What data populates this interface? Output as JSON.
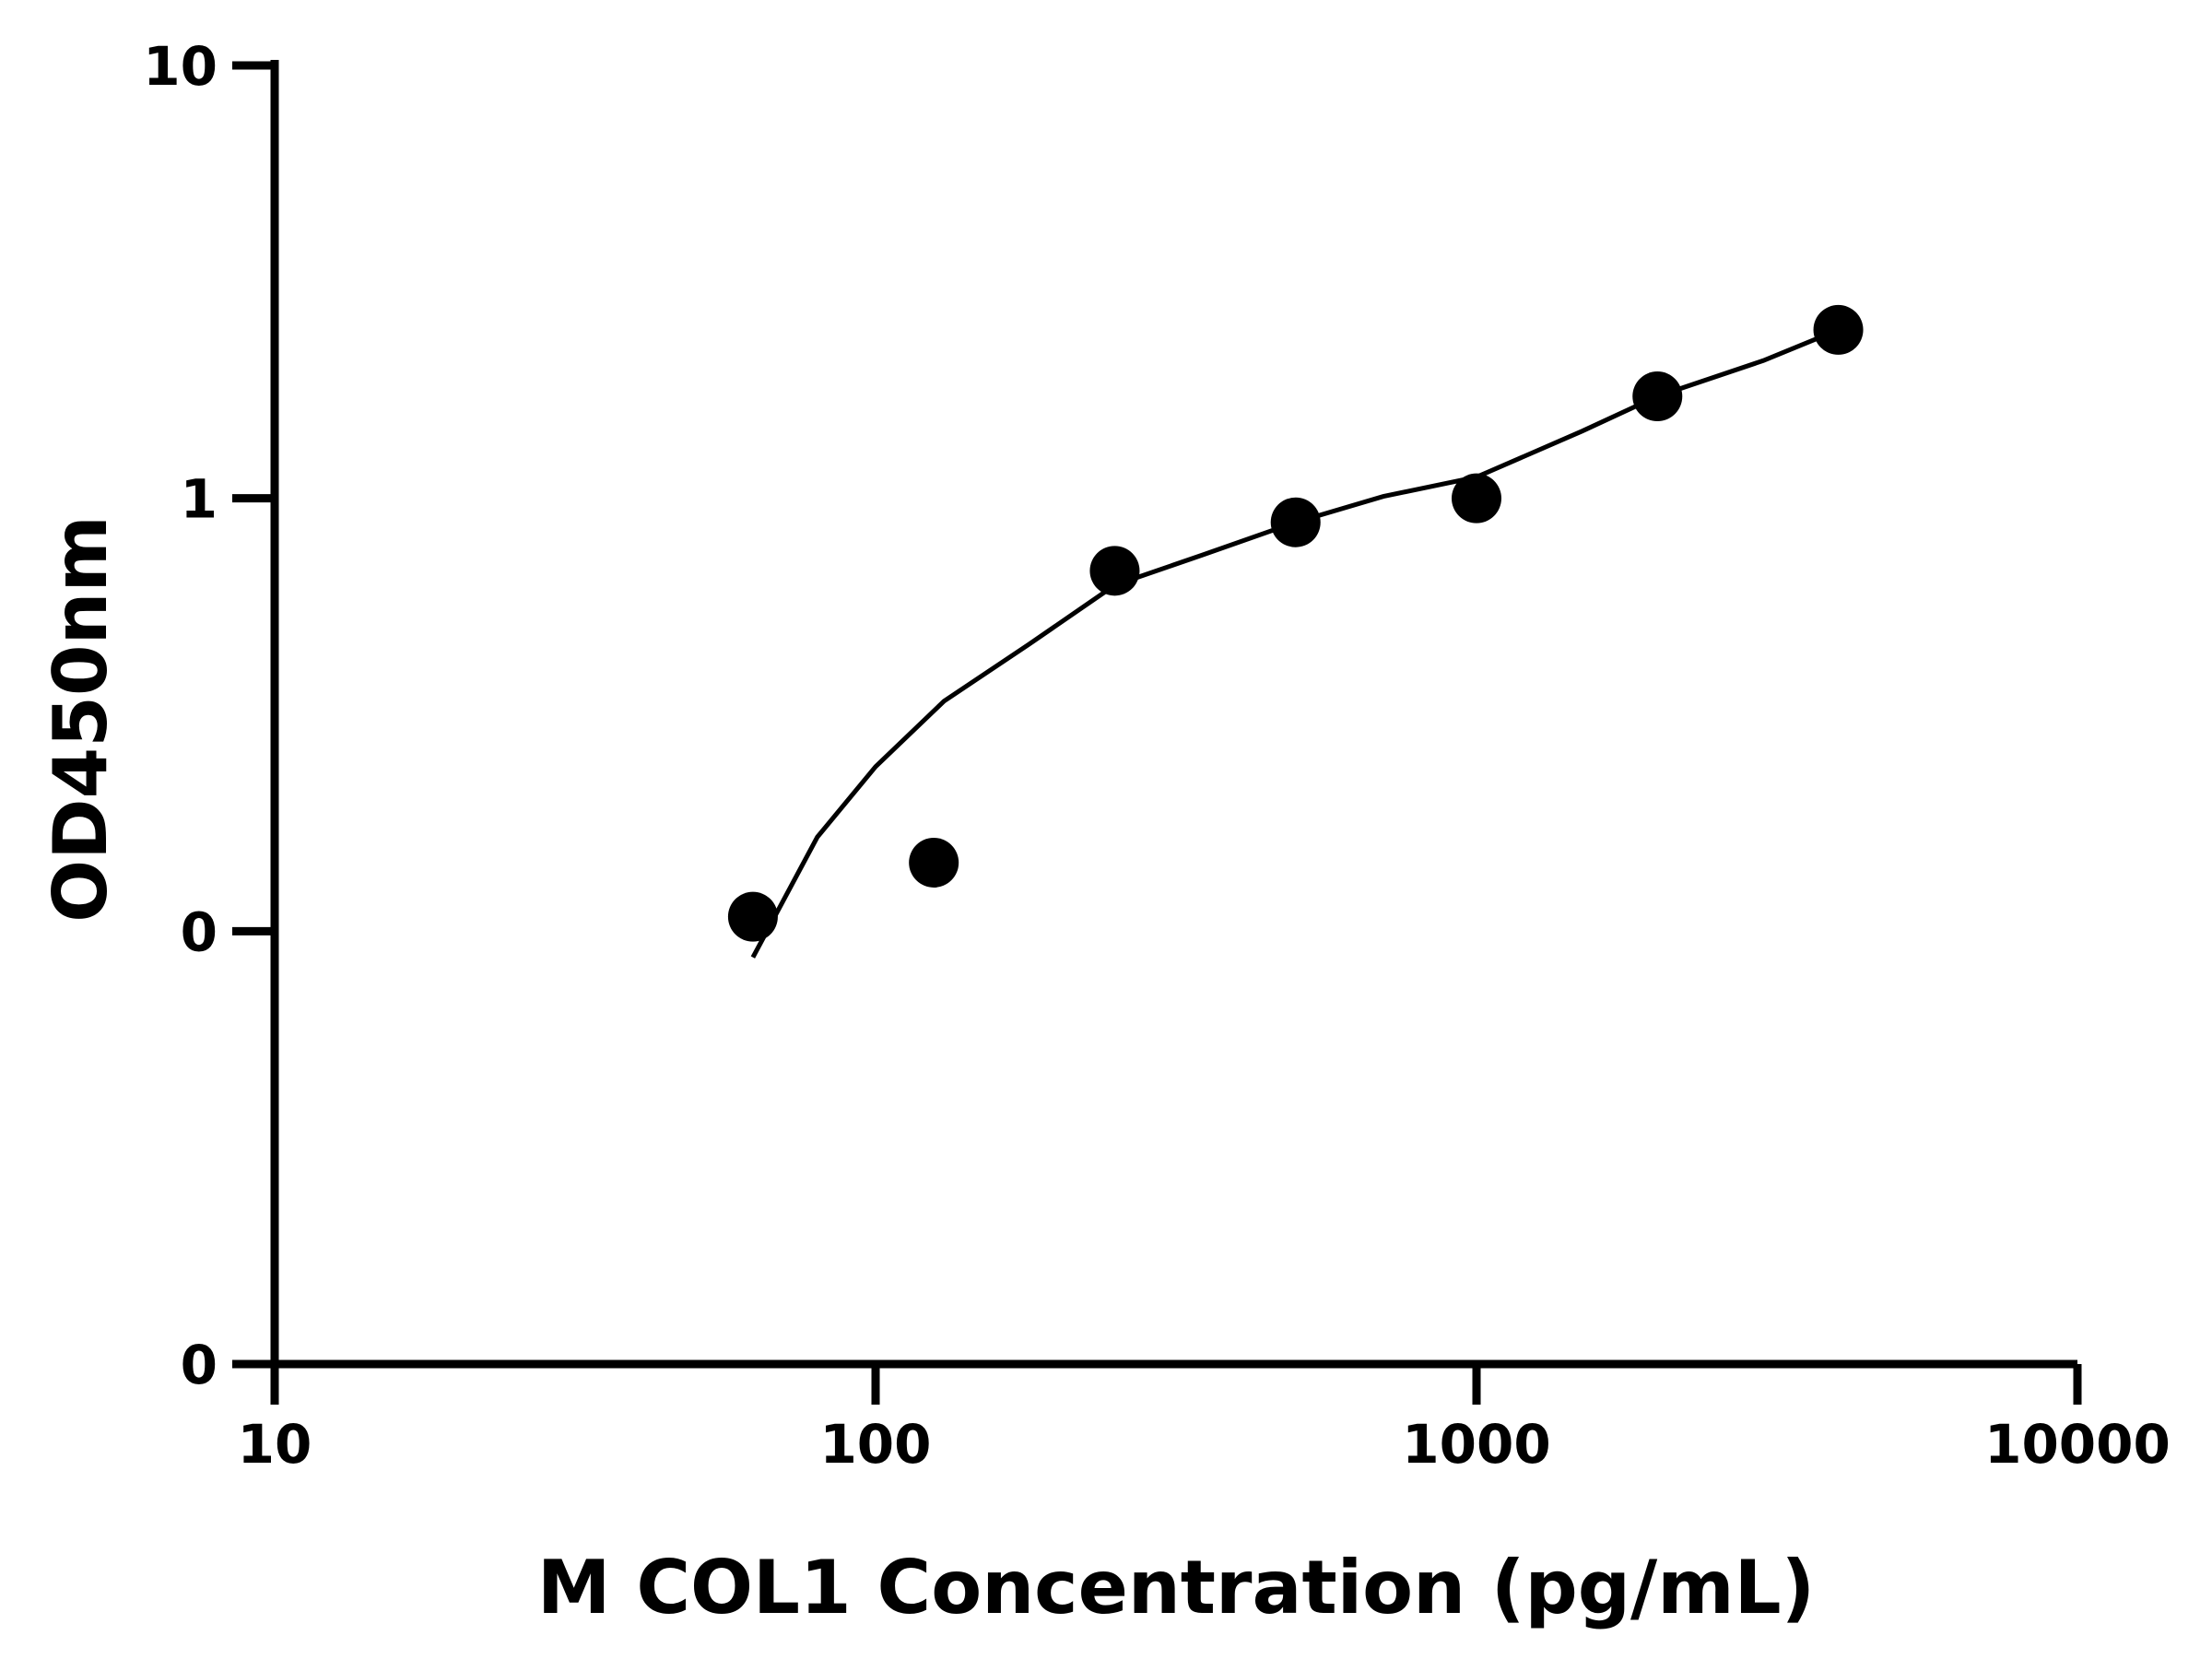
{
  "chart_data": {
    "type": "scatter",
    "title": "",
    "xlabel": "M COL1 Concentration (pg/mL)",
    "ylabel": "OD450nm",
    "x_scale": "log",
    "y_scale": "log",
    "xlim": [
      10,
      10000
    ],
    "ylim": [
      0.01,
      10
    ],
    "x_ticks": [
      {
        "value": 10,
        "label": "10"
      },
      {
        "value": 100,
        "label": "100"
      },
      {
        "value": 1000,
        "label": "1000"
      },
      {
        "value": 10000,
        "label": "10000"
      }
    ],
    "y_ticks": [
      {
        "value": 0.01,
        "label": "0"
      },
      {
        "value": 0.1,
        "label": "0"
      },
      {
        "value": 1,
        "label": "1"
      },
      {
        "value": 10,
        "label": "10"
      }
    ],
    "grid": false,
    "legend": "none",
    "series": [
      {
        "points": [
          {
            "x": 62.5,
            "y": 0.108
          },
          {
            "x": 125,
            "y": 0.144
          },
          {
            "x": 250,
            "y": 0.68
          },
          {
            "x": 500,
            "y": 0.88
          },
          {
            "x": 1000,
            "y": 1.0
          },
          {
            "x": 2000,
            "y": 1.72
          },
          {
            "x": 4000,
            "y": 2.45
          }
        ],
        "color": "#000000"
      }
    ],
    "fit_curve": {
      "points": [
        {
          "x": 62.5,
          "y": 0.087
        },
        {
          "x": 80,
          "y": 0.165
        },
        {
          "x": 100,
          "y": 0.24
        },
        {
          "x": 130,
          "y": 0.34
        },
        {
          "x": 180,
          "y": 0.46
        },
        {
          "x": 250,
          "y": 0.63
        },
        {
          "x": 350,
          "y": 0.74
        },
        {
          "x": 500,
          "y": 0.88
        },
        {
          "x": 700,
          "y": 1.01
        },
        {
          "x": 1000,
          "y": 1.12
        },
        {
          "x": 1500,
          "y": 1.43
        },
        {
          "x": 2000,
          "y": 1.72
        },
        {
          "x": 3000,
          "y": 2.08
        },
        {
          "x": 4000,
          "y": 2.45
        }
      ],
      "color": "#000000"
    }
  }
}
